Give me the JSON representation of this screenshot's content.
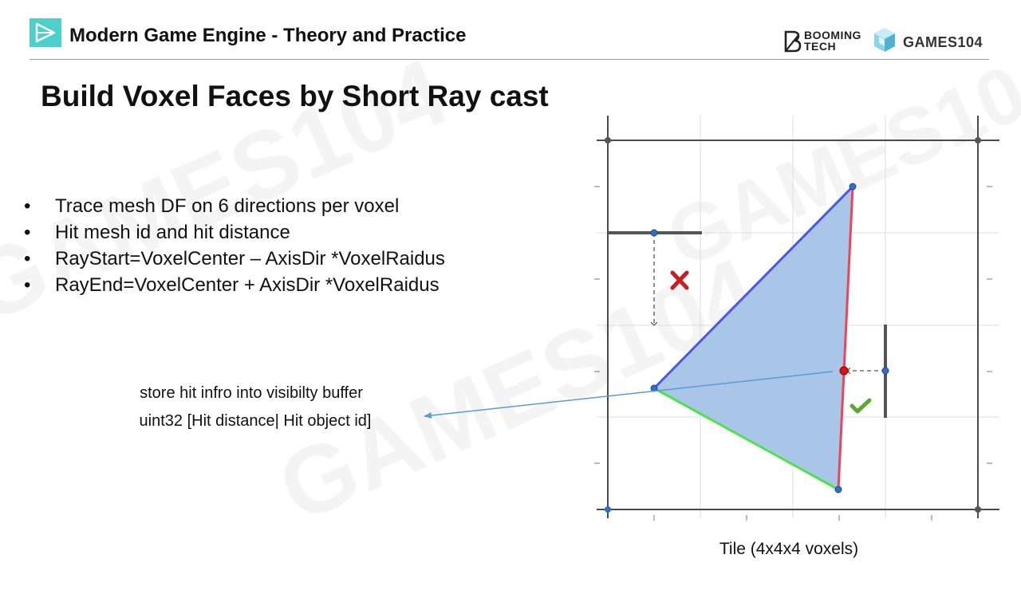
{
  "header": {
    "course_title": "Modern Game Engine - Theory and Practice",
    "brand_booming": "BOOMING",
    "brand_booming_sub": "TECH",
    "brand_games": "GAMES104",
    "logo_icon": "play-triangle-icon",
    "accent_color": "#4dd0c9"
  },
  "slide": {
    "title": "Build Voxel Faces by Short Ray cast",
    "bullets": [
      "Trace mesh DF on 6 directions per voxel",
      "Hit mesh id and hit distance",
      "RayStart=VoxelCenter – AxisDir *VoxelRaidus",
      "RayEnd=VoxelCenter + AxisDir *VoxelRaidus"
    ],
    "bullet_symbol": "•",
    "note_line1": "store hit infro into visibilty buffer",
    "note_line2": "uint32  [Hit distance| Hit object id]",
    "tile_caption": "Tile (4x4x4 voxels)"
  },
  "watermark": {
    "games": "GAMES104",
    "booming": "BOOMING TECH"
  },
  "diagram": {
    "colors": {
      "triangle_fill": "#a9c6e8",
      "edge_blue": "#4a56e8",
      "edge_red": "#ee4455",
      "edge_green": "#4ee34a",
      "vertex": "#2f6fc4",
      "hit_point": "#dd1111",
      "miss_mark": "#c81e1e",
      "check_mark": "#5aa832",
      "arrow": "#5a9bd5"
    },
    "miss_icon": "cross-icon",
    "hit_icon": "check-icon"
  }
}
